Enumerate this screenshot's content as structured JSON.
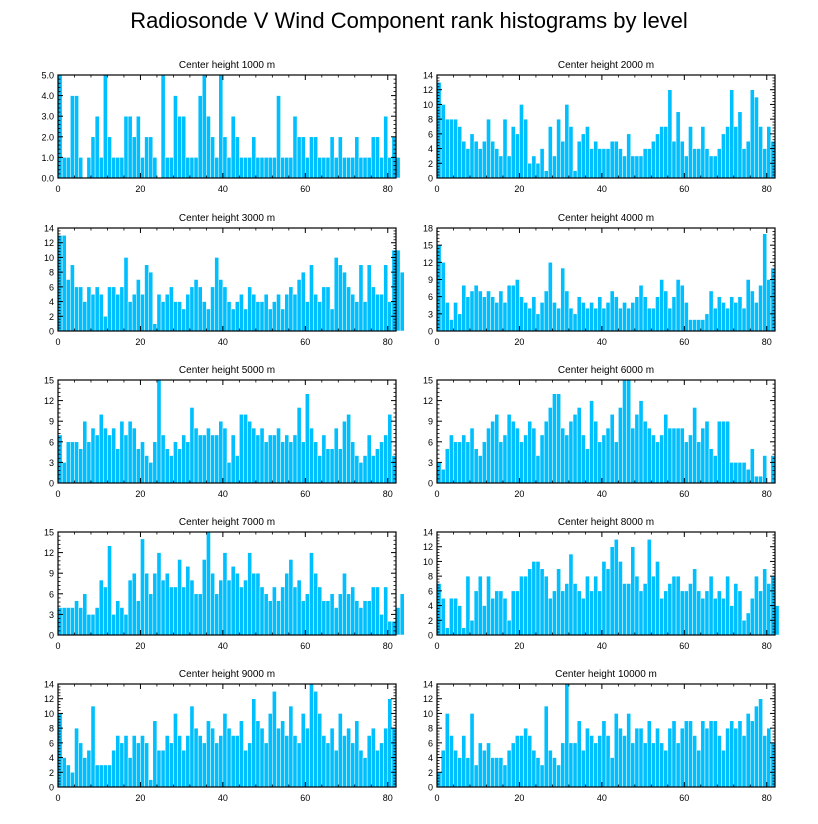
{
  "figure": {
    "title": "Radiosonde V Wind Component rank histograms by level"
  },
  "colors": {
    "bar": "#00bfff",
    "bar_edge": "#ffffff",
    "axis": "#000000"
  },
  "chart_data": [
    {
      "type": "bar",
      "title": "Center height 1000 m",
      "ylim": [
        0,
        5
      ],
      "yticks": [
        0,
        1,
        2,
        3,
        4,
        5
      ],
      "ytick_labels": [
        "0.0",
        "1.0",
        "2.0",
        "3.0",
        "4.0",
        "5.0"
      ],
      "xlim": [
        0,
        82
      ],
      "xticks": [
        0,
        20,
        40,
        60,
        80
      ],
      "values": [
        5,
        1,
        1,
        4,
        4,
        1,
        0,
        1,
        2,
        3,
        1,
        5,
        2,
        1,
        1,
        1,
        3,
        3,
        2,
        3,
        1,
        2,
        2,
        1,
        0,
        5,
        1,
        1,
        4,
        3,
        3,
        1,
        1,
        1,
        4,
        5,
        3,
        2,
        1,
        5,
        2,
        1,
        3,
        2,
        1,
        1,
        1,
        2,
        1,
        1,
        1,
        1,
        1,
        4,
        1,
        1,
        1,
        3,
        2,
        2,
        1,
        2,
        2,
        1,
        1,
        1,
        2,
        1,
        2,
        1,
        1,
        1,
        2,
        1,
        1,
        1,
        2,
        2,
        1,
        3,
        1,
        2,
        1
      ]
    },
    {
      "type": "bar",
      "title": "Center height 2000 m",
      "ylim": [
        0,
        14
      ],
      "yticks": [
        0,
        2,
        4,
        6,
        8,
        10,
        12,
        14
      ],
      "ytick_labels": [
        "0",
        "2",
        "4",
        "6",
        "8",
        "10",
        "12",
        "14"
      ],
      "xlim": [
        0,
        82
      ],
      "xticks": [
        0,
        20,
        40,
        60,
        80
      ],
      "values": [
        13,
        10,
        8,
        8,
        8,
        7,
        5,
        4,
        6,
        5,
        4,
        5,
        8,
        5,
        4,
        3,
        8,
        3,
        7,
        6,
        10,
        8,
        2,
        3,
        2,
        4,
        1,
        7,
        3,
        8,
        5,
        10,
        7,
        1,
        5,
        6,
        7,
        4,
        5,
        4,
        4,
        4,
        5,
        5,
        4,
        3,
        6,
        3,
        3,
        3,
        4,
        4,
        5,
        6,
        7,
        7,
        12,
        5,
        9,
        5,
        3,
        7,
        4,
        4,
        7,
        4,
        3,
        3,
        4,
        6,
        7,
        12,
        7,
        9,
        4,
        5,
        12,
        11,
        7,
        4,
        7,
        5
      ]
    },
    {
      "type": "bar",
      "title": "Center height 3000 m",
      "ylim": [
        0,
        14
      ],
      "yticks": [
        0,
        2,
        4,
        6,
        8,
        10,
        12,
        14
      ],
      "ytick_labels": [
        "0",
        "2",
        "4",
        "6",
        "8",
        "10",
        "12",
        "14"
      ],
      "xlim": [
        0,
        82
      ],
      "xticks": [
        0,
        20,
        40,
        60,
        80
      ],
      "values": [
        13,
        13,
        7,
        9,
        6,
        6,
        4,
        6,
        5,
        6,
        5,
        2,
        6,
        6,
        5,
        6,
        10,
        4,
        5,
        7,
        5,
        9,
        8,
        1,
        5,
        4,
        5,
        6,
        4,
        4,
        3,
        5,
        6,
        7,
        6,
        4,
        3,
        6,
        10,
        7,
        6,
        4,
        3,
        4,
        5,
        3,
        6,
        5,
        4,
        4,
        5,
        3,
        4,
        5,
        3,
        5,
        6,
        5,
        7,
        8,
        4,
        9,
        5,
        4,
        6,
        6,
        3,
        10,
        9,
        8,
        6,
        5,
        4,
        9,
        4,
        9,
        6,
        5,
        5,
        9,
        4,
        11,
        11,
        8
      ]
    },
    {
      "type": "bar",
      "title": "Center height 4000 m",
      "ylim": [
        0,
        18
      ],
      "yticks": [
        0,
        3,
        6,
        9,
        12,
        15,
        18
      ],
      "ytick_labels": [
        "0",
        "3",
        "6",
        "9",
        "12",
        "15",
        "18"
      ],
      "xlim": [
        0,
        82
      ],
      "xticks": [
        0,
        20,
        40,
        60,
        80
      ],
      "values": [
        15,
        12,
        5,
        2,
        5,
        3,
        8,
        6,
        7,
        8,
        7,
        6,
        7,
        6,
        5,
        7,
        5,
        8,
        8,
        9,
        6,
        5,
        4,
        6,
        3,
        5,
        7,
        12,
        5,
        4,
        11,
        7,
        4,
        3,
        6,
        5,
        4,
        5,
        4,
        6,
        4,
        5,
        7,
        6,
        4,
        5,
        4,
        5,
        6,
        8,
        6,
        4,
        4,
        6,
        9,
        7,
        4,
        6,
        9,
        8,
        5,
        2,
        2,
        2,
        2,
        3,
        7,
        4,
        6,
        5,
        4,
        6,
        5,
        6,
        4,
        9,
        7,
        5,
        8,
        17,
        9,
        11
      ]
    },
    {
      "type": "bar",
      "title": "Center height 5000 m",
      "ylim": [
        0,
        15
      ],
      "yticks": [
        0,
        3,
        6,
        9,
        12,
        15
      ],
      "ytick_labels": [
        "0",
        "3",
        "6",
        "9",
        "12",
        "15"
      ],
      "xlim": [
        0,
        82
      ],
      "xticks": [
        0,
        20,
        40,
        60,
        80
      ],
      "values": [
        7,
        3,
        6,
        6,
        6,
        5,
        9,
        6,
        8,
        7,
        10,
        8,
        7,
        8,
        5,
        9,
        7,
        9,
        8,
        5,
        6,
        4,
        3,
        6,
        15,
        7,
        5,
        4,
        6,
        5,
        7,
        6,
        11,
        8,
        7,
        7,
        8,
        7,
        7,
        9,
        8,
        3,
        7,
        4,
        10,
        10,
        9,
        8,
        7,
        8,
        6,
        7,
        7,
        8,
        6,
        7,
        6,
        7,
        11,
        6,
        13,
        8,
        6,
        4,
        7,
        5,
        5,
        8,
        5,
        9,
        10,
        6,
        4,
        3,
        4,
        7,
        4,
        5,
        6,
        7,
        10,
        4
      ]
    },
    {
      "type": "bar",
      "title": "Center height 6000 m",
      "ylim": [
        0,
        15
      ],
      "yticks": [
        0,
        3,
        6,
        9,
        12,
        15
      ],
      "ytick_labels": [
        "0",
        "3",
        "6",
        "9",
        "12",
        "15"
      ],
      "xlim": [
        0,
        82
      ],
      "xticks": [
        0,
        20,
        40,
        60,
        80
      ],
      "values": [
        3,
        2,
        5,
        7,
        6,
        6,
        7,
        6,
        8,
        5,
        4,
        6,
        8,
        9,
        10,
        6,
        7,
        10,
        9,
        8,
        6,
        7,
        9,
        8,
        4,
        7,
        9,
        11,
        13,
        13,
        8,
        7,
        9,
        10,
        11,
        7,
        5,
        12,
        9,
        6,
        7,
        8,
        10,
        6,
        11,
        15,
        15,
        8,
        10,
        12,
        9,
        8,
        7,
        6,
        7,
        10,
        8,
        8,
        8,
        8,
        6,
        7,
        11,
        6,
        8,
        9,
        5,
        4,
        9,
        9,
        9,
        3,
        3,
        3,
        3,
        2,
        5,
        1,
        1,
        4,
        0,
        4
      ]
    },
    {
      "type": "bar",
      "title": "Center height 7000 m",
      "ylim": [
        0,
        15
      ],
      "yticks": [
        0,
        3,
        6,
        9,
        12,
        15
      ],
      "ytick_labels": [
        "0",
        "3",
        "6",
        "9",
        "12",
        "15"
      ],
      "xlim": [
        0,
        82
      ],
      "xticks": [
        0,
        20,
        40,
        60,
        80
      ],
      "values": [
        4,
        4,
        4,
        4,
        5,
        4,
        6,
        3,
        3,
        4,
        8,
        7,
        13,
        3,
        5,
        4,
        3,
        8,
        9,
        5,
        14,
        9,
        6,
        9,
        12,
        8,
        9,
        7,
        7,
        11,
        7,
        10,
        8,
        6,
        6,
        11,
        15,
        9,
        6,
        8,
        12,
        8,
        10,
        9,
        7,
        8,
        12,
        9,
        9,
        7,
        6,
        5,
        7,
        5,
        7,
        9,
        11,
        7,
        8,
        5,
        6,
        12,
        9,
        7,
        5,
        5,
        6,
        4,
        6,
        9,
        6,
        7,
        5,
        4,
        5,
        5,
        7,
        7,
        3,
        7,
        2,
        2,
        4,
        6
      ]
    },
    {
      "type": "bar",
      "title": "Center height 8000 m",
      "ylim": [
        0,
        14
      ],
      "yticks": [
        0,
        2,
        4,
        6,
        8,
        10,
        12,
        14
      ],
      "ytick_labels": [
        "0",
        "2",
        "4",
        "6",
        "8",
        "10",
        "12",
        "14"
      ],
      "xlim": [
        0,
        82
      ],
      "xticks": [
        0,
        20,
        40,
        60,
        80
      ],
      "values": [
        7,
        5,
        1,
        5,
        5,
        4,
        1,
        8,
        2,
        6,
        8,
        4,
        8,
        5,
        6,
        6,
        5,
        2,
        6,
        6,
        8,
        8,
        9,
        10,
        10,
        9,
        8,
        5,
        6,
        9,
        6,
        7,
        11,
        7,
        6,
        5,
        8,
        6,
        8,
        6,
        10,
        9,
        12,
        13,
        10,
        7,
        7,
        12,
        8,
        6,
        7,
        13,
        8,
        10,
        5,
        6,
        7,
        8,
        8,
        6,
        6,
        7,
        9,
        6,
        5,
        6,
        8,
        5,
        6,
        5,
        8,
        4,
        7,
        6,
        2,
        3,
        5,
        8,
        6,
        9,
        7,
        8,
        4
      ]
    },
    {
      "type": "bar",
      "title": "Center height 9000 m",
      "ylim": [
        0,
        14
      ],
      "yticks": [
        0,
        2,
        4,
        6,
        8,
        10,
        12,
        14
      ],
      "ytick_labels": [
        "0",
        "2",
        "4",
        "6",
        "8",
        "10",
        "12",
        "14"
      ],
      "xlim": [
        0,
        82
      ],
      "xticks": [
        0,
        20,
        40,
        60,
        80
      ],
      "values": [
        10,
        4,
        3,
        2,
        8,
        6,
        4,
        5,
        11,
        3,
        3,
        3,
        3,
        5,
        7,
        6,
        7,
        4,
        7,
        6,
        7,
        6,
        1,
        9,
        5,
        5,
        7,
        6,
        10,
        7,
        5,
        7,
        11,
        8,
        7,
        6,
        9,
        8,
        6,
        7,
        10,
        8,
        7,
        7,
        9,
        5,
        6,
        12,
        9,
        8,
        6,
        10,
        13,
        8,
        9,
        7,
        11,
        7,
        6,
        10,
        8,
        14,
        13,
        10,
        7,
        6,
        8,
        5,
        10,
        7,
        8,
        6,
        9,
        5,
        4,
        7,
        8,
        5,
        6,
        8,
        12,
        8
      ]
    },
    {
      "type": "bar",
      "title": "Center height 10000 m",
      "ylim": [
        0,
        14
      ],
      "yticks": [
        0,
        2,
        4,
        6,
        8,
        10,
        12,
        14
      ],
      "ytick_labels": [
        "0",
        "2",
        "4",
        "6",
        "8",
        "10",
        "12",
        "14"
      ],
      "xlim": [
        0,
        82
      ],
      "xticks": [
        0,
        20,
        40,
        60,
        80
      ],
      "values": [
        2,
        5,
        10,
        7,
        5,
        4,
        7,
        4,
        10,
        3,
        6,
        5,
        6,
        4,
        4,
        4,
        3,
        5,
        6,
        7,
        7,
        8,
        7,
        5,
        4,
        3,
        11,
        5,
        4,
        3,
        6,
        14,
        6,
        6,
        9,
        5,
        8,
        7,
        6,
        7,
        9,
        7,
        4,
        10,
        8,
        7,
        10,
        6,
        8,
        8,
        6,
        9,
        6,
        8,
        6,
        5,
        8,
        9,
        6,
        8,
        9,
        9,
        7,
        5,
        9,
        8,
        9,
        9,
        7,
        5,
        8,
        9,
        8,
        9,
        7,
        10,
        9,
        11,
        12,
        7,
        8,
        6
      ]
    }
  ]
}
